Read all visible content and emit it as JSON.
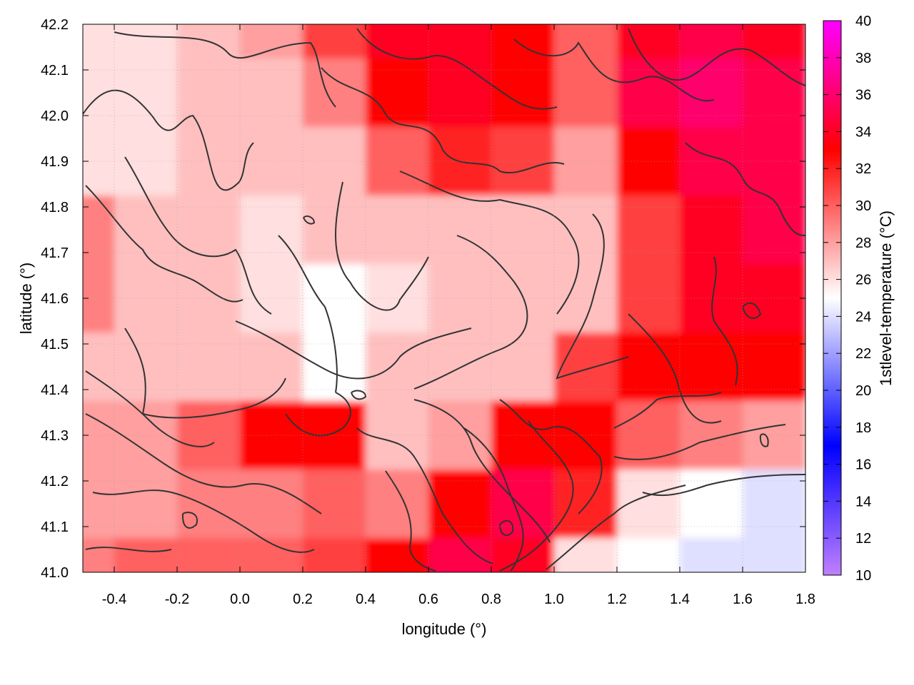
{
  "chart_data": {
    "type": "heatmap",
    "title": "",
    "xlabel": "longitude (°)",
    "ylabel": "latitude (°)",
    "colorbar_label": "1stlevel-temperature (°C)",
    "xlim": [
      -0.5,
      1.8
    ],
    "ylim": [
      41.0,
      42.2
    ],
    "zlim": [
      10,
      40
    ],
    "x_ticks": [
      -0.4,
      -0.2,
      0.0,
      0.2,
      0.4,
      0.6,
      0.8,
      1.0,
      1.2,
      1.4,
      1.6,
      1.8
    ],
    "x_tick_labels": [
      "-0.4",
      "-0.2",
      "0.0",
      "0.2",
      "0.4",
      "0.6",
      "0.8",
      "1.0",
      "1.2",
      "1.4",
      "1.6",
      "1.8"
    ],
    "y_ticks": [
      41.0,
      41.1,
      41.2,
      41.3,
      41.4,
      41.5,
      41.6,
      41.7,
      41.8,
      41.9,
      42.0,
      42.1,
      42.2
    ],
    "y_tick_labels": [
      "41.0",
      "41.1",
      "41.2",
      "41.3",
      "41.4",
      "41.5",
      "41.6",
      "41.7",
      "41.8",
      "41.9",
      "42.0",
      "42.1",
      "42.2"
    ],
    "colorbar_ticks": [
      10,
      12,
      14,
      16,
      18,
      20,
      22,
      24,
      26,
      28,
      30,
      32,
      34,
      36,
      38,
      40
    ],
    "colorbar_tick_labels": [
      "10",
      "12",
      "14",
      "16",
      "18",
      "20",
      "22",
      "24",
      "26",
      "28",
      "30",
      "32",
      "34",
      "36",
      "38",
      "40"
    ],
    "colormap": [
      {
        "value": 10,
        "color": "#c080ff"
      },
      {
        "value": 17,
        "color": "#0000ff"
      },
      {
        "value": 25,
        "color": "#ffffff"
      },
      {
        "value": 33,
        "color": "#ff0000"
      },
      {
        "value": 40,
        "color": "#ff00ff"
      }
    ],
    "grid": true,
    "contours": true,
    "contour_color": "#333333",
    "field_grid": {
      "note_rows": "latitude descending from 42.2 to 41.0",
      "x": [
        -0.5,
        -0.3,
        -0.1,
        0.1,
        0.3,
        0.5,
        0.7,
        0.9,
        1.1,
        1.3,
        1.5,
        1.7
      ],
      "y": [
        42.2,
        42.05,
        41.9,
        41.75,
        41.6,
        41.45,
        41.3,
        41.15,
        41.0
      ],
      "z": [
        [
          26,
          26,
          27,
          28,
          31,
          34,
          34,
          33,
          30,
          34,
          35,
          34
        ],
        [
          26,
          26,
          27,
          27,
          29,
          33,
          34,
          33,
          30,
          35,
          36,
          35
        ],
        [
          26,
          26,
          27,
          27,
          27,
          30,
          32,
          31,
          28,
          33,
          35,
          35
        ],
        [
          29,
          27,
          27,
          26,
          27,
          27,
          27,
          27,
          27,
          31,
          34,
          35
        ],
        [
          29,
          27,
          27,
          26,
          25,
          26,
          27,
          27,
          27,
          31,
          34,
          34
        ],
        [
          27,
          27,
          27,
          27,
          25,
          27,
          27,
          27,
          31,
          33,
          33,
          33
        ],
        [
          28,
          28,
          30,
          33,
          33,
          27,
          28,
          33,
          33,
          30,
          29,
          28
        ],
        [
          28,
          28,
          29,
          29,
          30,
          29,
          33,
          35,
          32,
          26,
          25,
          24
        ],
        [
          29,
          30,
          30,
          30,
          31,
          33,
          35,
          34,
          26,
          25,
          24,
          24
        ]
      ]
    }
  }
}
